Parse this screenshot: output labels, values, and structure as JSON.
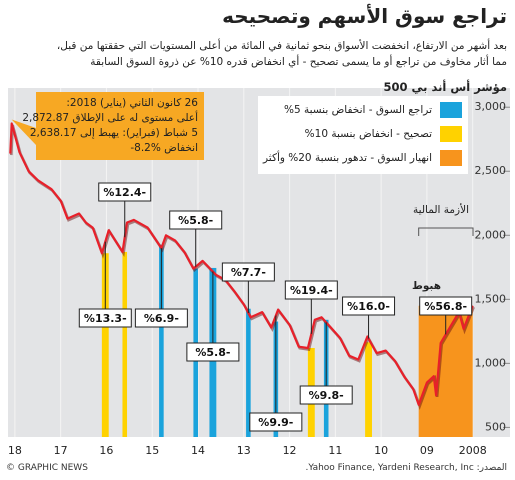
{
  "chart_data": {
    "type": "line",
    "title": "تراجع سوق الأسهم وتصحيحه",
    "subtitle": [
      "بعد أشهر من الارتفاع، انخفضت الأسواق بنحو ثمانية في المائة من أعلى المستويات التي حققتها من قبل،",
      "مما أثار مخاوف من تراجع أو ما يسمى تصحيح - أي انخفاض قدره 10% عن ذروة السوق السابقة"
    ],
    "ylabel": "مؤشر أس أند بي 500",
    "xlim": [
      2018.15,
      2007.95
    ],
    "xticks": [
      {
        "value": 2018,
        "label": "18"
      },
      {
        "value": 2017,
        "label": "17"
      },
      {
        "value": 2016,
        "label": "16"
      },
      {
        "value": 2015,
        "label": "15"
      },
      {
        "value": 2014,
        "label": "14"
      },
      {
        "value": 2013,
        "label": "13"
      },
      {
        "value": 2012,
        "label": "12"
      },
      {
        "value": 2011,
        "label": "11"
      },
      {
        "value": 2010,
        "label": "10"
      },
      {
        "value": 2009,
        "label": "09"
      },
      2008
    ],
    "ylim": [
      425,
      3150
    ],
    "yticks": [
      {
        "value": 3000,
        "label": "3,000"
      },
      {
        "value": 2500,
        "label": "2,500"
      },
      {
        "value": 2000,
        "label": "2,000"
      },
      {
        "value": 1500,
        "label": "1,500"
      },
      {
        "value": 1000,
        "label": "1,000"
      },
      500
    ],
    "grid": "x",
    "series": [
      {
        "color": "#e8202a",
        "x": [
          2018.1,
          2018.07,
          2017.9,
          2017.7,
          2017.5,
          2017.2,
          2017.0,
          2016.85,
          2016.6,
          2016.45,
          2016.3,
          2016.1,
          2015.95,
          2015.65,
          2015.55,
          2015.4,
          2015.1,
          2014.8,
          2014.7,
          2014.5,
          2014.3,
          2014.1,
          2013.9,
          2013.6,
          2013.4,
          2013.2,
          2013.0,
          2012.85,
          2012.6,
          2012.4,
          2012.25,
          2012.0,
          2011.8,
          2011.6,
          2011.45,
          2011.3,
          2011.1,
          2010.9,
          2010.7,
          2010.5,
          2010.3,
          2010.1,
          2009.9,
          2009.7,
          2009.5,
          2009.3,
          2009.18,
          2009.0,
          2008.85,
          2008.8,
          2008.7,
          2008.5,
          2008.3,
          2008.2,
          2008.0
        ],
        "values": [
          2638.17,
          2872.87,
          2650,
          2500,
          2430,
          2360,
          2270,
          2130,
          2170,
          2100,
          2060,
          1860,
          2040,
          1870,
          2100,
          2120,
          2060,
          1900,
          2000,
          1960,
          1870,
          1740,
          1800,
          1690,
          1650,
          1560,
          1460,
          1360,
          1400,
          1280,
          1420,
          1300,
          1130,
          1120,
          1340,
          1360,
          1280,
          1200,
          1060,
          1030,
          1210,
          1080,
          1100,
          1020,
          900,
          800,
          677,
          850,
          900,
          750,
          1160,
          1280,
          1400,
          1270,
          1450
        ]
      }
    ],
    "legend": [
      {
        "label": "تراجع السوق - انخفاض بنسبة 5%",
        "color": "#1aa3dc"
      },
      {
        "label": "تصحيح - انخفاض بنسبة 10%",
        "color": "#ffd200"
      },
      {
        "label": "انهيار السوق - تدهور بنسبة 20% وأكثر",
        "color": "#f7941d"
      }
    ],
    "corrections": {
      "x_start": [
        2015.65,
        2016.1,
        2014.85,
        2014.1,
        2013.75,
        2012.95,
        2012.35,
        2011.6,
        2011.25,
        2010.35,
        2008.0
      ],
      "x_end": [
        2015.55,
        2015.95,
        2014.75,
        2014.0,
        2013.6,
        2012.85,
        2012.25,
        2011.45,
        2011.15,
        2010.2,
        2009.18
      ],
      "values": [
        -12.4,
        -13.3,
        -6.9,
        -5.8,
        -5.8,
        -7.7,
        -9.9,
        -19.4,
        -9.8,
        -16.0,
        -56.8
      ],
      "value_labels": [
        "%12.4-",
        "%13.3-",
        "%6.9-",
        "%5.8-",
        "%5.8-",
        "%7.7-",
        "%9.9-",
        "%19.4-",
        "%9.8-",
        "%16.0-",
        "%56.8-"
      ],
      "colors": [
        "#ffd200",
        "#ffd200",
        "#1aa3dc",
        "#1aa3dc",
        "#1aa3dc",
        "#1aa3dc",
        "#1aa3dc",
        "#ffd200",
        "#1aa3dc",
        "#ffd200",
        "#f7941d"
      ]
    },
    "annotation": [
      "26 كانون الثاني (يناير) 2018:",
      "أعلى مستوى له على الإطلاق 2,872.87",
      "5 شباط (فبراير): يهبط إلى 2,638.17",
      "انخفاض %8.2-"
    ],
    "crisis_label": "الأزمة المالية",
    "drop_label": "هبوط",
    "source": "المصدر: Yahoo Finance, Yardeni Research, Inc.",
    "credit": "© GRAPHIC NEWS"
  }
}
